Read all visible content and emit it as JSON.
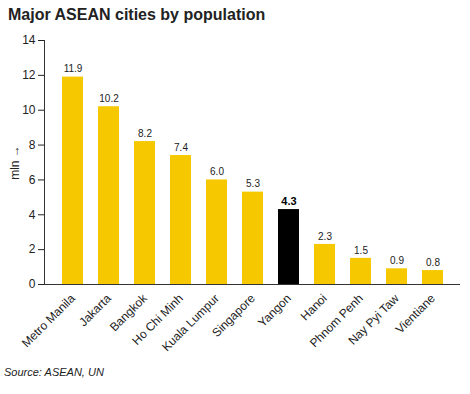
{
  "chart_data": {
    "type": "bar",
    "title": "Major ASEAN cities by population",
    "y_label": "mln",
    "source": "Source: ASEAN, UN",
    "categories": [
      "Metro Manila",
      "Jakarta",
      "Bangkok",
      "Ho Chi Minh",
      "Kuala Lumpur",
      "Singapore",
      "Yangon",
      "Hanoi",
      "Phnom Penh",
      "Nay Pyi Taw",
      "Vientiane"
    ],
    "values": [
      11.9,
      10.2,
      8.2,
      7.4,
      6.0,
      5.3,
      4.3,
      2.3,
      1.5,
      0.9,
      0.8
    ],
    "value_labels": [
      "11.9",
      "10.2",
      "8.2",
      "7.4",
      "6.0",
      "5.3",
      "4.3",
      "2.3",
      "1.5",
      "0.9",
      "0.8"
    ],
    "colors": [
      "#f5c800",
      "#f5c800",
      "#f5c800",
      "#f5c800",
      "#f5c800",
      "#f5c800",
      "#000000",
      "#f5c800",
      "#f5c800",
      "#f5c800",
      "#f5c800"
    ],
    "ylim": [
      0,
      14
    ],
    "yticks": [
      0,
      2,
      4,
      6,
      8,
      10,
      12,
      14
    ],
    "grid": false,
    "data_labels": true
  }
}
